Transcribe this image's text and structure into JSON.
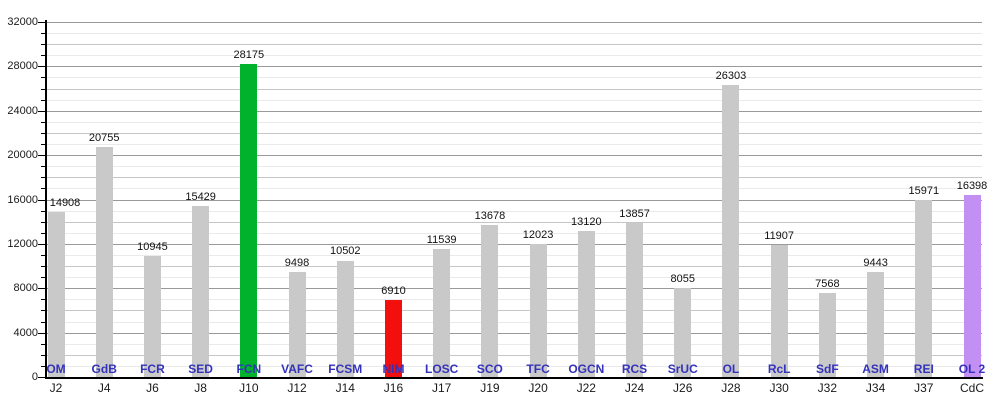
{
  "chart_data": {
    "type": "bar",
    "title": "",
    "xlabel": "",
    "ylabel": "",
    "categories": [
      "OM",
      "GdB",
      "FCR",
      "SED",
      "FCN",
      "VAFC",
      "FCSM",
      "NIM",
      "LOSC",
      "SCO",
      "TFC",
      "OGCN",
      "RCS",
      "SrUC",
      "OL",
      "RcL",
      "SdF",
      "ASM",
      "REI",
      "OL 2"
    ],
    "x_secondary": [
      "J2",
      "J4",
      "J6",
      "J8",
      "J10",
      "J12",
      "J14",
      "J16",
      "J17",
      "J19",
      "J20",
      "J22",
      "J24",
      "J26",
      "J28",
      "J30",
      "J32",
      "J34",
      "J37",
      "CdC"
    ],
    "values": [
      14908,
      20755,
      10945,
      15429,
      28175,
      9498,
      10502,
      6910,
      11539,
      13678,
      12023,
      13120,
      13857,
      8055,
      26303,
      11907,
      7568,
      9443,
      15971,
      16398
    ],
    "ylim": [
      0,
      32000
    ],
    "y_ticks": [
      0,
      4000,
      8000,
      12000,
      16000,
      20000,
      24000,
      28000,
      32000
    ],
    "y_major_step": 4000,
    "y_minor_step": 1000,
    "grid": "on",
    "legend": "none",
    "value_labels_shown": true,
    "bar_colors": {
      "default": "#c9c9c9",
      "overrides": {
        "4": "#00b22c",
        "7": "#f40f0f",
        "19": "#c28ff2"
      }
    },
    "style_colors": {
      "category_label": "#3432bb",
      "axis": "#000000",
      "grid_major": "#9a9a9a",
      "grid_medium": "#c6c6c6",
      "grid_minor": "#eaeaea",
      "value_label": "#111111",
      "tick_label": "#1a1a1a"
    }
  }
}
